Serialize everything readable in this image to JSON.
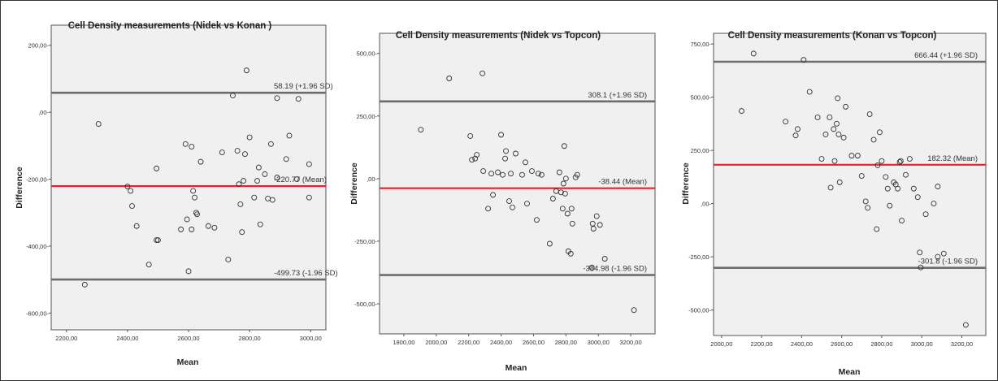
{
  "chart_data": [
    {
      "type": "scatter",
      "title": "Cell Density measurements (Nidek vs Konan )",
      "xlabel": "Mean",
      "ylabel": "Difference",
      "xlim": [
        2150,
        3050
      ],
      "ylim": [
        -650,
        260
      ],
      "xticks": [
        2200,
        2400,
        2600,
        2800,
        3000
      ],
      "xtick_labels": [
        "2200,00",
        "2400,00",
        "2600,00",
        "2800,00",
        "3000,00"
      ],
      "yticks": [
        200,
        0,
        -200,
        -400,
        -600
      ],
      "ytick_labels": [
        "200,00-",
        ",00-",
        "-200,00-",
        "-400,00-",
        "-600,00-"
      ],
      "grid": false,
      "legend": "none",
      "lines": [
        {
          "value": 58.19,
          "label": "58.19 (+1.96 SD)",
          "color": "#6d6d6d"
        },
        {
          "value": -220.77,
          "label": "-220.77 (Mean)",
          "color": "#e8202e"
        },
        {
          "value": -499.73,
          "label": "-499.73 (-1.96 SD)",
          "color": "#6d6d6d"
        }
      ],
      "points": [
        [
          2260,
          -515
        ],
        [
          2305,
          -35
        ],
        [
          2400,
          -222
        ],
        [
          2410,
          -235
        ],
        [
          2415,
          -280
        ],
        [
          2430,
          -340
        ],
        [
          2470,
          -455
        ],
        [
          2495,
          -382
        ],
        [
          2500,
          -382
        ],
        [
          2495,
          -168
        ],
        [
          2575,
          -350
        ],
        [
          2590,
          -95
        ],
        [
          2595,
          -320
        ],
        [
          2600,
          -475
        ],
        [
          2610,
          -103
        ],
        [
          2610,
          -350
        ],
        [
          2615,
          -235
        ],
        [
          2620,
          -255
        ],
        [
          2625,
          -300
        ],
        [
          2628,
          -305
        ],
        [
          2640,
          -148
        ],
        [
          2665,
          -340
        ],
        [
          2685,
          -345
        ],
        [
          2710,
          -120
        ],
        [
          2730,
          -440
        ],
        [
          2745,
          50
        ],
        [
          2760,
          -115
        ],
        [
          2765,
          -215
        ],
        [
          2770,
          -275
        ],
        [
          2775,
          -358
        ],
        [
          2780,
          -205
        ],
        [
          2785,
          -125
        ],
        [
          2790,
          125
        ],
        [
          2800,
          -75
        ],
        [
          2815,
          -255
        ],
        [
          2825,
          -205
        ],
        [
          2830,
          -165
        ],
        [
          2835,
          -335
        ],
        [
          2850,
          -185
        ],
        [
          2860,
          -258
        ],
        [
          2870,
          -95
        ],
        [
          2875,
          -262
        ],
        [
          2890,
          -195
        ],
        [
          2890,
          42
        ],
        [
          2920,
          -140
        ],
        [
          2930,
          -70
        ],
        [
          2955,
          -200
        ],
        [
          2960,
          40
        ],
        [
          2995,
          -155
        ],
        [
          2995,
          -255
        ]
      ]
    },
    {
      "type": "scatter",
      "title": "Cell Density measurements (Nidek vs Topcon)",
      "xlabel": "Mean",
      "ylabel": "Difference",
      "xlim": [
        1650,
        3350
      ],
      "ylim": [
        -620,
        580
      ],
      "xticks": [
        1800,
        2000,
        2200,
        2400,
        2600,
        2800,
        3000,
        3200
      ],
      "xtick_labels": [
        "1800,00",
        "2000,00",
        "2200,00",
        "2400,00",
        "2600,00",
        "2800,00",
        "3000,00",
        "3200,00"
      ],
      "yticks": [
        500,
        250,
        0,
        -250,
        -500
      ],
      "ytick_labels": [
        "500,00-",
        "250,00-",
        ",00-",
        "-250,00-",
        "-500,00-"
      ],
      "grid": false,
      "legend": "none",
      "lines": [
        {
          "value": 308.1,
          "label": "308.1 (+1.96 SD)",
          "color": "#6d6d6d"
        },
        {
          "value": -38.44,
          "label": "-38.44 (Mean)",
          "color": "#e8202e"
        },
        {
          "value": -384.98,
          "label": "-384.98 (-1.96 SD)",
          "color": "#6d6d6d"
        }
      ],
      "points": [
        [
          1905,
          195
        ],
        [
          2080,
          400
        ],
        [
          2210,
          170
        ],
        [
          2220,
          75
        ],
        [
          2240,
          80
        ],
        [
          2250,
          95
        ],
        [
          2285,
          420
        ],
        [
          2290,
          30
        ],
        [
          2320,
          -120
        ],
        [
          2340,
          20
        ],
        [
          2350,
          -65
        ],
        [
          2380,
          25
        ],
        [
          2400,
          175
        ],
        [
          2410,
          15
        ],
        [
          2425,
          80
        ],
        [
          2430,
          110
        ],
        [
          2450,
          -90
        ],
        [
          2460,
          20
        ],
        [
          2470,
          -115
        ],
        [
          2490,
          100
        ],
        [
          2530,
          15
        ],
        [
          2550,
          65
        ],
        [
          2560,
          -100
        ],
        [
          2590,
          30
        ],
        [
          2620,
          -165
        ],
        [
          2630,
          20
        ],
        [
          2650,
          15
        ],
        [
          2700,
          -260
        ],
        [
          2720,
          -80
        ],
        [
          2740,
          -50
        ],
        [
          2760,
          25
        ],
        [
          2770,
          -55
        ],
        [
          2780,
          -120
        ],
        [
          2785,
          -20
        ],
        [
          2790,
          130
        ],
        [
          2795,
          -60
        ],
        [
          2800,
          0
        ],
        [
          2810,
          -140
        ],
        [
          2815,
          -290
        ],
        [
          2830,
          -300
        ],
        [
          2835,
          -120
        ],
        [
          2840,
          -180
        ],
        [
          2860,
          5
        ],
        [
          2870,
          15
        ],
        [
          2960,
          -355
        ],
        [
          2965,
          -180
        ],
        [
          2970,
          -200
        ],
        [
          2990,
          -150
        ],
        [
          3010,
          -185
        ],
        [
          3040,
          -320
        ],
        [
          3220,
          -525
        ]
      ]
    },
    {
      "type": "scatter",
      "title": "Cell Density measurements (Konan vs Topcon)",
      "xlabel": "Mean",
      "ylabel": "Difference",
      "xlim": [
        1960,
        3320
      ],
      "ylim": [
        -620,
        800
      ],
      "xticks": [
        2000,
        2200,
        2400,
        2600,
        2800,
        3000,
        3200
      ],
      "xtick_labels": [
        "2000,00",
        "2200,00",
        "2400,00",
        "2600,00",
        "2800,00",
        "3000,00",
        "3200,00"
      ],
      "yticks": [
        750,
        500,
        250,
        0,
        -250,
        -500
      ],
      "ytick_labels": [
        "750,00-",
        "500,00-",
        "250,00-",
        ",00-",
        "-250,00-",
        "-500,00-"
      ],
      "grid": false,
      "legend": "none",
      "lines": [
        {
          "value": 666.44,
          "label": "666.44 (+1.96 SD)",
          "color": "#6d6d6d"
        },
        {
          "value": 182.32,
          "label": "182.32 (Mean)",
          "color": "#e8202e"
        },
        {
          "value": -301.8,
          "label": "-301.8 (-1.96 SD)",
          "color": "#6d6d6d"
        }
      ],
      "points": [
        [
          2100,
          435
        ],
        [
          2160,
          705
        ],
        [
          2320,
          385
        ],
        [
          2370,
          320
        ],
        [
          2380,
          350
        ],
        [
          2410,
          675
        ],
        [
          2440,
          525
        ],
        [
          2480,
          405
        ],
        [
          2500,
          210
        ],
        [
          2520,
          325
        ],
        [
          2540,
          405
        ],
        [
          2545,
          75
        ],
        [
          2560,
          350
        ],
        [
          2565,
          200
        ],
        [
          2575,
          375
        ],
        [
          2580,
          495
        ],
        [
          2585,
          325
        ],
        [
          2590,
          100
        ],
        [
          2610,
          310
        ],
        [
          2620,
          455
        ],
        [
          2650,
          225
        ],
        [
          2680,
          225
        ],
        [
          2700,
          130
        ],
        [
          2720,
          10
        ],
        [
          2730,
          -20
        ],
        [
          2740,
          420
        ],
        [
          2760,
          300
        ],
        [
          2775,
          -120
        ],
        [
          2780,
          180
        ],
        [
          2790,
          335
        ],
        [
          2800,
          200
        ],
        [
          2820,
          125
        ],
        [
          2830,
          70
        ],
        [
          2840,
          -10
        ],
        [
          2860,
          100
        ],
        [
          2870,
          90
        ],
        [
          2880,
          70
        ],
        [
          2890,
          195
        ],
        [
          2895,
          200
        ],
        [
          2900,
          -80
        ],
        [
          2920,
          135
        ],
        [
          2940,
          210
        ],
        [
          2960,
          70
        ],
        [
          2980,
          30
        ],
        [
          2990,
          -230
        ],
        [
          2995,
          -300
        ],
        [
          3020,
          -50
        ],
        [
          3060,
          0
        ],
        [
          3080,
          -250
        ],
        [
          3080,
          80
        ],
        [
          3110,
          -235
        ],
        [
          3220,
          -570
        ]
      ]
    }
  ]
}
